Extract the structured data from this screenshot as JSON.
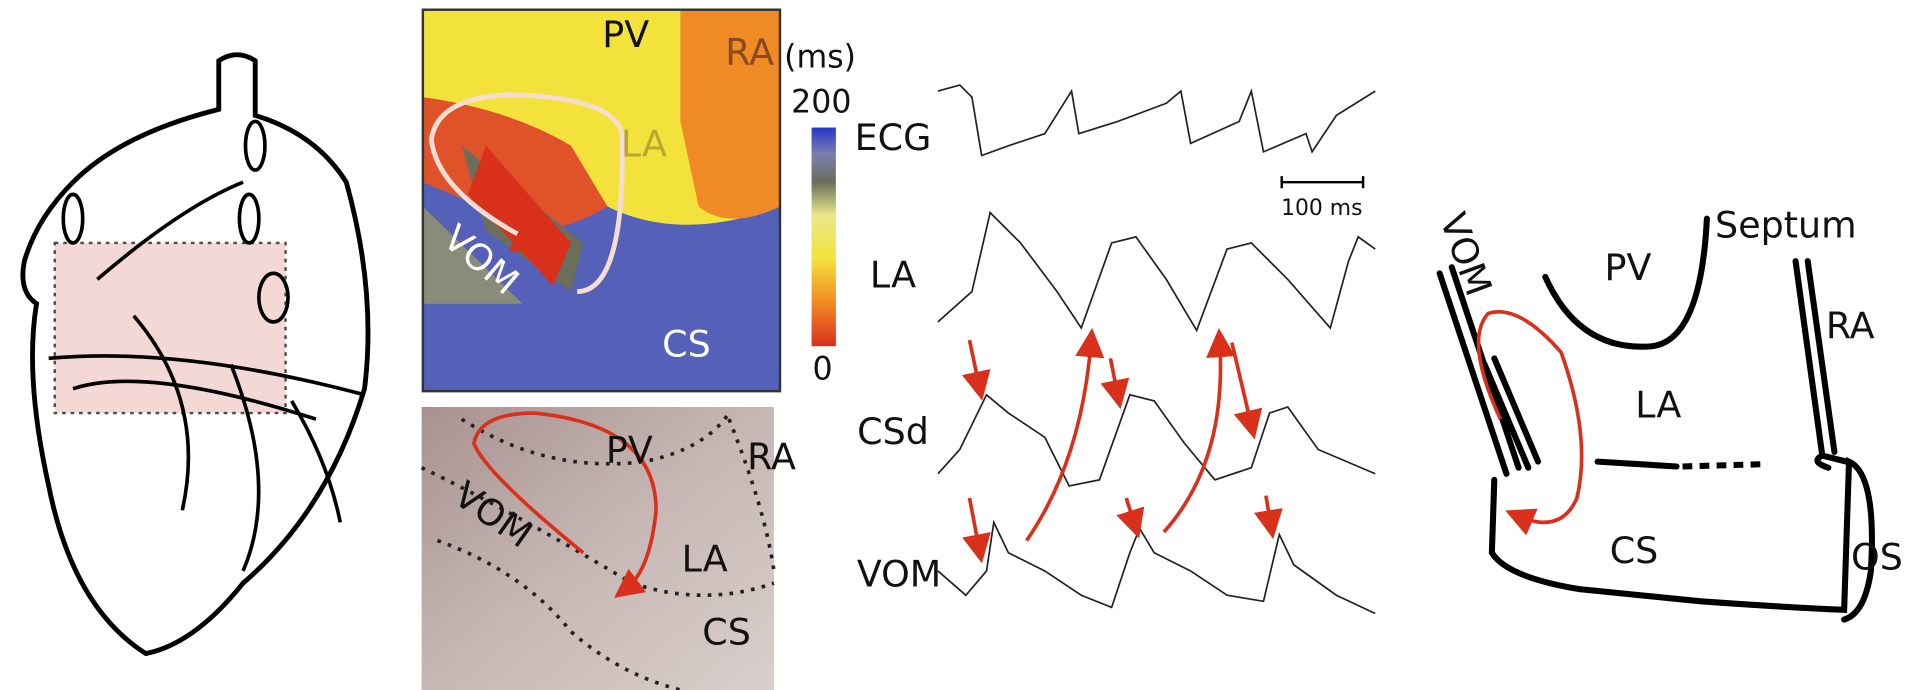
{
  "activation_map": {
    "labels": {
      "pv": "PV",
      "ra": "RA",
      "la": "LA",
      "vom": "VOM",
      "cs": "CS"
    },
    "colorbar": {
      "unit": "(ms)",
      "max": 200,
      "min": 0
    }
  },
  "photo": {
    "labels": {
      "pv": "PV",
      "ra": "RA",
      "vom": "VOM",
      "la": "LA",
      "cs": "CS"
    }
  },
  "traces": {
    "labels": [
      "ECG",
      "LA",
      "CSd",
      "VOM"
    ],
    "scale_bar": "100 ms"
  },
  "schematic": {
    "labels": {
      "vom": "VOM",
      "pv": "PV",
      "septum": "Septum",
      "ra": "RA",
      "la": "LA",
      "cs": "CS",
      "os": "OS"
    }
  }
}
